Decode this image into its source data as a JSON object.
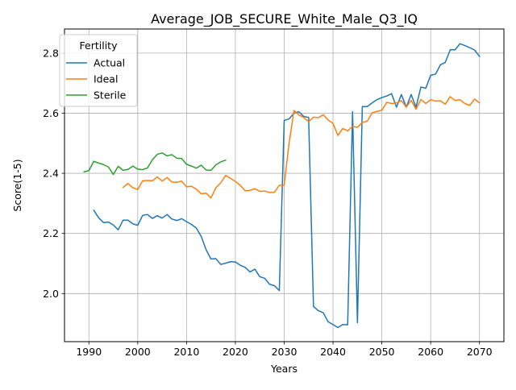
{
  "chart_data": {
    "type": "line",
    "title": "Average_JOB_SECURE_White_Male_Q3_IQ",
    "xlabel": "Years",
    "ylabel": "Score(1-5)",
    "xlim": [
      1985,
      2075
    ],
    "ylim": [
      1.84,
      2.88
    ],
    "xticks": [
      1990,
      2000,
      2010,
      2020,
      2030,
      2040,
      2050,
      2060,
      2070
    ],
    "yticks": [
      2.0,
      2.2,
      2.4,
      2.6,
      2.8
    ],
    "ytick_labels": [
      "2.0",
      "2.2",
      "2.4",
      "2.6",
      "2.8"
    ],
    "grid": true,
    "legend": {
      "title": "Fertility",
      "placement": "top-left"
    },
    "series": [
      {
        "name": "Actual",
        "color": "#1f77b4",
        "points": [
          [
            1991,
            2.277
          ],
          [
            1992,
            2.252
          ],
          [
            1993,
            2.236
          ],
          [
            1994,
            2.238
          ],
          [
            1995,
            2.228
          ],
          [
            1996,
            2.212
          ],
          [
            1997,
            2.244
          ],
          [
            1998,
            2.244
          ],
          [
            1999,
            2.232
          ],
          [
            2000,
            2.227
          ],
          [
            2001,
            2.26
          ],
          [
            2002,
            2.263
          ],
          [
            2003,
            2.25
          ],
          [
            2004,
            2.259
          ],
          [
            2005,
            2.251
          ],
          [
            2006,
            2.263
          ],
          [
            2007,
            2.248
          ],
          [
            2008,
            2.243
          ],
          [
            2009,
            2.249
          ],
          [
            2010,
            2.239
          ],
          [
            2011,
            2.23
          ],
          [
            2012,
            2.218
          ],
          [
            2013,
            2.19
          ],
          [
            2014,
            2.146
          ],
          [
            2015,
            2.115
          ],
          [
            2016,
            2.116
          ],
          [
            2017,
            2.097
          ],
          [
            2018,
            2.101
          ],
          [
            2019,
            2.106
          ],
          [
            2020,
            2.105
          ],
          [
            2021,
            2.094
          ],
          [
            2022,
            2.087
          ],
          [
            2023,
            2.072
          ],
          [
            2024,
            2.081
          ],
          [
            2025,
            2.056
          ],
          [
            2026,
            2.051
          ],
          [
            2027,
            2.031
          ],
          [
            2028,
            2.026
          ],
          [
            2029,
            2.01
          ],
          [
            2030,
            2.576
          ],
          [
            2031,
            2.581
          ],
          [
            2032,
            2.6
          ],
          [
            2033,
            2.605
          ],
          [
            2034,
            2.589
          ],
          [
            2035,
            2.586
          ],
          [
            2036,
            1.957
          ],
          [
            2037,
            1.943
          ],
          [
            2038,
            1.936
          ],
          [
            2039,
            1.906
          ],
          [
            2040,
            1.897
          ],
          [
            2041,
            1.887
          ],
          [
            2042,
            1.897
          ],
          [
            2043,
            1.896
          ],
          [
            2044,
            2.605
          ],
          [
            2045,
            1.903
          ],
          [
            2046,
            2.622
          ],
          [
            2047,
            2.622
          ],
          [
            2048,
            2.634
          ],
          [
            2049,
            2.645
          ],
          [
            2050,
            2.652
          ],
          [
            2051,
            2.657
          ],
          [
            2052,
            2.665
          ],
          [
            2053,
            2.62
          ],
          [
            2054,
            2.662
          ],
          [
            2055,
            2.62
          ],
          [
            2056,
            2.662
          ],
          [
            2057,
            2.62
          ],
          [
            2058,
            2.687
          ],
          [
            2059,
            2.683
          ],
          [
            2060,
            2.726
          ],
          [
            2061,
            2.73
          ],
          [
            2062,
            2.761
          ],
          [
            2063,
            2.769
          ],
          [
            2064,
            2.811
          ],
          [
            2065,
            2.811
          ],
          [
            2066,
            2.831
          ],
          [
            2067,
            2.825
          ],
          [
            2068,
            2.818
          ],
          [
            2069,
            2.81
          ],
          [
            2070,
            2.789
          ]
        ]
      },
      {
        "name": "Ideal",
        "color": "#ff7f0e",
        "points": [
          [
            1997,
            2.353
          ],
          [
            1998,
            2.366
          ],
          [
            1999,
            2.352
          ],
          [
            2000,
            2.346
          ],
          [
            2001,
            2.375
          ],
          [
            2002,
            2.376
          ],
          [
            2003,
            2.375
          ],
          [
            2004,
            2.388
          ],
          [
            2005,
            2.374
          ],
          [
            2006,
            2.386
          ],
          [
            2007,
            2.371
          ],
          [
            2008,
            2.37
          ],
          [
            2009,
            2.374
          ],
          [
            2010,
            2.355
          ],
          [
            2011,
            2.357
          ],
          [
            2012,
            2.347
          ],
          [
            2013,
            2.332
          ],
          [
            2014,
            2.334
          ],
          [
            2015,
            2.318
          ],
          [
            2016,
            2.352
          ],
          [
            2017,
            2.368
          ],
          [
            2018,
            2.393
          ],
          [
            2019,
            2.383
          ],
          [
            2020,
            2.373
          ],
          [
            2021,
            2.36
          ],
          [
            2022,
            2.342
          ],
          [
            2023,
            2.343
          ],
          [
            2024,
            2.349
          ],
          [
            2025,
            2.34
          ],
          [
            2026,
            2.341
          ],
          [
            2027,
            2.336
          ],
          [
            2028,
            2.337
          ],
          [
            2029,
            2.36
          ],
          [
            2030,
            2.361
          ],
          [
            2031,
            2.5
          ],
          [
            2032,
            2.609
          ],
          [
            2033,
            2.594
          ],
          [
            2034,
            2.586
          ],
          [
            2035,
            2.572
          ],
          [
            2036,
            2.587
          ],
          [
            2037,
            2.585
          ],
          [
            2038,
            2.595
          ],
          [
            2039,
            2.577
          ],
          [
            2040,
            2.566
          ],
          [
            2041,
            2.526
          ],
          [
            2042,
            2.549
          ],
          [
            2043,
            2.541
          ],
          [
            2044,
            2.556
          ],
          [
            2045,
            2.553
          ],
          [
            2046,
            2.569
          ],
          [
            2047,
            2.573
          ],
          [
            2048,
            2.601
          ],
          [
            2049,
            2.606
          ],
          [
            2050,
            2.61
          ],
          [
            2051,
            2.636
          ],
          [
            2052,
            2.632
          ],
          [
            2053,
            2.634
          ],
          [
            2054,
            2.642
          ],
          [
            2055,
            2.62
          ],
          [
            2056,
            2.643
          ],
          [
            2057,
            2.613
          ],
          [
            2058,
            2.646
          ],
          [
            2059,
            2.632
          ],
          [
            2060,
            2.645
          ],
          [
            2061,
            2.64
          ],
          [
            2062,
            2.641
          ],
          [
            2063,
            2.63
          ],
          [
            2064,
            2.655
          ],
          [
            2065,
            2.642
          ],
          [
            2066,
            2.645
          ],
          [
            2067,
            2.632
          ],
          [
            2068,
            2.626
          ],
          [
            2069,
            2.647
          ],
          [
            2070,
            2.634
          ]
        ]
      },
      {
        "name": "Sterile",
        "color": "#2ca02c",
        "points": [
          [
            1989,
            2.405
          ],
          [
            1990,
            2.409
          ],
          [
            1991,
            2.44
          ],
          [
            1992,
            2.434
          ],
          [
            1993,
            2.429
          ],
          [
            1994,
            2.421
          ],
          [
            1995,
            2.396
          ],
          [
            1996,
            2.423
          ],
          [
            1997,
            2.41
          ],
          [
            1998,
            2.413
          ],
          [
            1999,
            2.424
          ],
          [
            2000,
            2.414
          ],
          [
            2001,
            2.412
          ],
          [
            2002,
            2.418
          ],
          [
            2003,
            2.445
          ],
          [
            2004,
            2.463
          ],
          [
            2005,
            2.468
          ],
          [
            2006,
            2.458
          ],
          [
            2007,
            2.462
          ],
          [
            2008,
            2.45
          ],
          [
            2009,
            2.449
          ],
          [
            2010,
            2.43
          ],
          [
            2011,
            2.424
          ],
          [
            2012,
            2.417
          ],
          [
            2013,
            2.427
          ],
          [
            2014,
            2.411
          ],
          [
            2015,
            2.41
          ],
          [
            2016,
            2.428
          ],
          [
            2017,
            2.438
          ],
          [
            2018,
            2.444
          ]
        ]
      }
    ]
  }
}
